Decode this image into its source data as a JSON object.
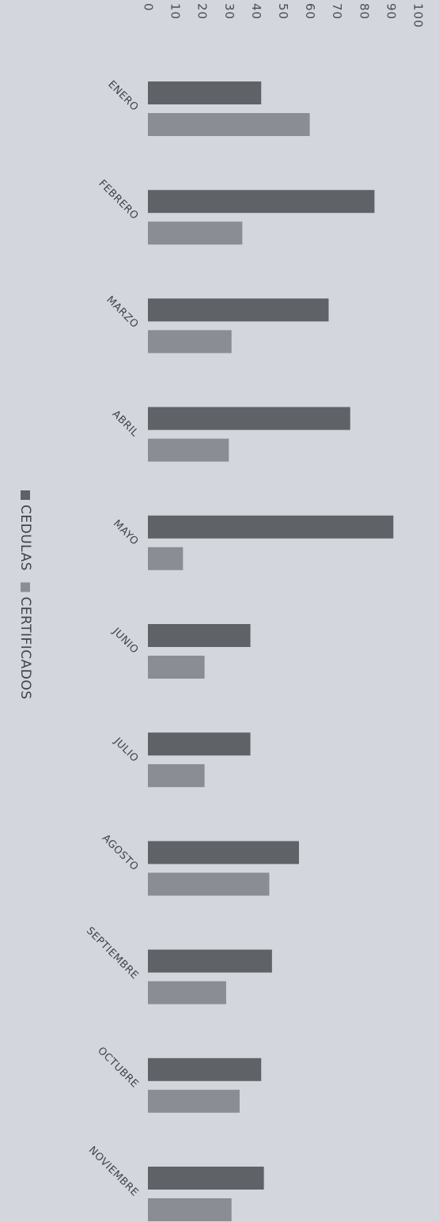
{
  "chart_data": {
    "type": "bar",
    "orientation": "horizontal",
    "categories": [
      "ENERO",
      "FEBRERO",
      "MARZO",
      "ABRIL",
      "MAYO",
      "JUNIO",
      "JULIO",
      "AGOSTO",
      "SEPTIEMBRE",
      "OCTUBRE",
      "NOVIEMBRE"
    ],
    "series": [
      {
        "name": "CEDULAS",
        "color": "#5f6368",
        "values": [
          42,
          84,
          67,
          75,
          91,
          38,
          38,
          56,
          46,
          42,
          43
        ]
      },
      {
        "name": "CERTIFICADOS",
        "color": "#8a8d93",
        "values": [
          60,
          35,
          31,
          30,
          13,
          21,
          21,
          45,
          29,
          34,
          31
        ]
      }
    ],
    "ticks": [
      "0",
      "10",
      "20",
      "30",
      "40",
      "50",
      "60",
      "70",
      "80",
      "90",
      "100"
    ],
    "xlim": [
      0,
      100
    ],
    "grid": false,
    "legend_position": "left"
  }
}
